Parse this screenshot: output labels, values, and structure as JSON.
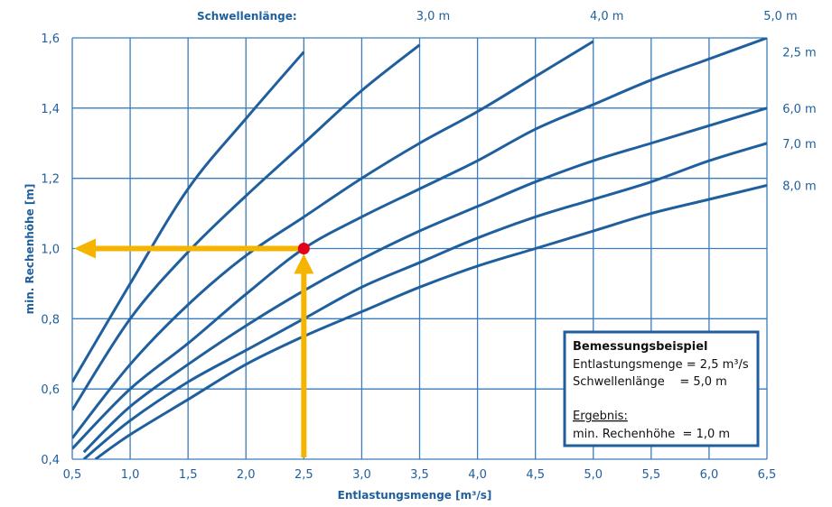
{
  "chart_data": {
    "type": "line",
    "title": "",
    "xlabel": "Entlastungsmenge [m³/s]",
    "ylabel": "min. Rechenhöhe [m]",
    "xlim": [
      0.5,
      6.5
    ],
    "ylim": [
      0.4,
      1.6
    ],
    "x_ticks": [
      "0,5",
      "1,0",
      "1,5",
      "2,0",
      "2,5",
      "3,0",
      "3,5",
      "4,0",
      "4,5",
      "5,0",
      "5,5",
      "6,0",
      "6,5"
    ],
    "y_ticks": [
      "0,4",
      "0,6",
      "0,8",
      "1,0",
      "1,2",
      "1,4",
      "1,6"
    ],
    "grid": true,
    "series_header": "Schwellenlänge:",
    "series": [
      {
        "label": "2,5 m",
        "x": [
          0.5,
          1.0,
          1.5,
          2.0,
          2.5
        ],
        "y": [
          0.62,
          0.9,
          1.17,
          1.37,
          1.56
        ]
      },
      {
        "label": "3,0 m",
        "x": [
          0.5,
          1.0,
          1.5,
          2.0,
          2.5,
          3.0,
          3.5
        ],
        "y": [
          0.54,
          0.8,
          0.99,
          1.15,
          1.3,
          1.45,
          1.58
        ]
      },
      {
        "label": "4,0 m",
        "x": [
          0.5,
          1.0,
          1.5,
          2.0,
          2.5,
          3.0,
          3.5,
          4.0,
          4.5,
          5.0
        ],
        "y": [
          0.46,
          0.67,
          0.84,
          0.98,
          1.09,
          1.2,
          1.3,
          1.39,
          1.49,
          1.59
        ]
      },
      {
        "label": "5,0 m",
        "x": [
          0.5,
          1.0,
          1.5,
          2.0,
          2.5,
          3.0,
          3.5,
          4.0,
          4.5,
          5.0,
          5.5,
          6.0,
          6.5
        ],
        "y": [
          0.43,
          0.6,
          0.73,
          0.87,
          1.0,
          1.09,
          1.17,
          1.25,
          1.34,
          1.41,
          1.48,
          1.54,
          1.6
        ]
      },
      {
        "label": "6,0 m",
        "x": [
          0.6,
          1.0,
          1.5,
          2.0,
          2.5,
          3.0,
          3.5,
          4.0,
          4.5,
          5.0,
          5.5,
          6.0,
          6.5
        ],
        "y": [
          0.42,
          0.55,
          0.67,
          0.78,
          0.88,
          0.97,
          1.05,
          1.12,
          1.19,
          1.25,
          1.3,
          1.35,
          1.4
        ]
      },
      {
        "label": "7,0 m",
        "x": [
          0.6,
          1.0,
          1.5,
          2.0,
          2.5,
          3.0,
          3.5,
          4.0,
          4.5,
          5.0,
          5.5,
          6.0,
          6.5
        ],
        "y": [
          0.4,
          0.51,
          0.62,
          0.71,
          0.8,
          0.89,
          0.96,
          1.03,
          1.09,
          1.14,
          1.19,
          1.25,
          1.3
        ]
      },
      {
        "label": "8,0 m",
        "x": [
          0.7,
          1.0,
          1.5,
          2.0,
          2.5,
          3.0,
          3.5,
          4.0,
          4.5,
          5.0,
          5.5,
          6.0,
          6.5
        ],
        "y": [
          0.4,
          0.47,
          0.57,
          0.67,
          0.75,
          0.82,
          0.89,
          0.95,
          1.0,
          1.05,
          1.1,
          1.14,
          1.18
        ]
      }
    ],
    "example_point": {
      "x": 2.5,
      "y": 1.0
    }
  },
  "colors": {
    "curve": "#1f5f9e",
    "grid": "#3a7cc0",
    "arrow": "#f5b400",
    "point": "#e3001b",
    "box_border": "#1f5f9e"
  },
  "example_box": {
    "title": "Bemessungsbeispiel",
    "line1": "Entlastungsmenge = 2,5 m³/s",
    "line2": "Schwellenlänge    = 5,0 m",
    "result_label": "Ergebnis:",
    "result_value": "min. Rechenhöhe  = 1,0 m"
  }
}
